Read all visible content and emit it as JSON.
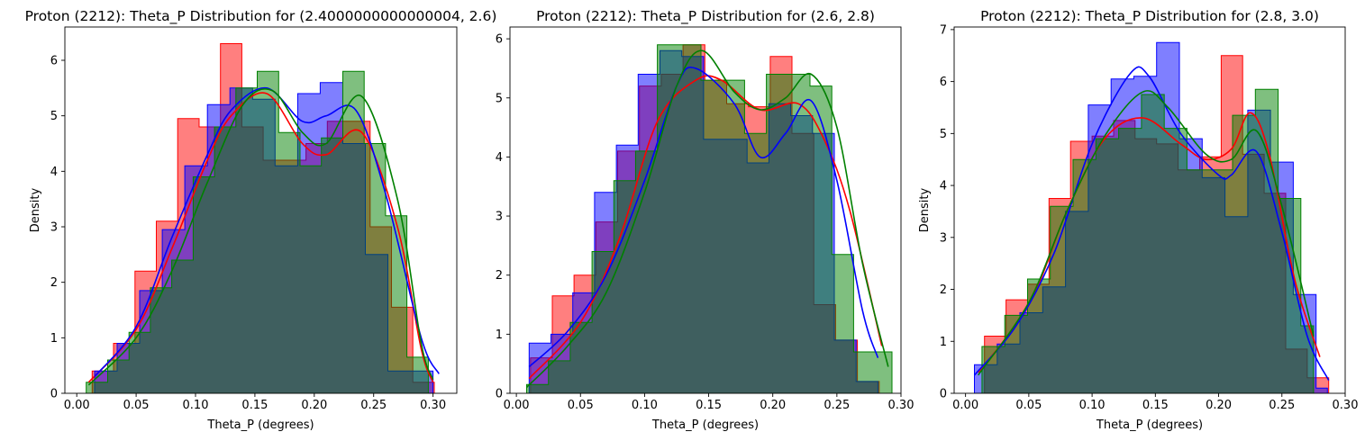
{
  "chart_data": [
    {
      "type": "area",
      "title": "Proton (2212): Theta_P Distribution for (2.4000000000000004, 2.6)",
      "xlabel": "Theta_P (degrees)",
      "ylabel": "Density",
      "xlim": [
        -0.01,
        0.32
      ],
      "ylim": [
        0,
        6.6
      ],
      "xticks": [
        0.0,
        0.05,
        0.1,
        0.15,
        0.2,
        0.25,
        0.3
      ],
      "xtick_labels": [
        "0.00",
        "0.05",
        "0.10",
        "0.15",
        "0.20",
        "0.25",
        "0.30"
      ],
      "yticks": [
        0,
        1,
        2,
        3,
        4,
        5,
        6
      ],
      "ytick_labels": [
        "0",
        "1",
        "2",
        "3",
        "4",
        "5",
        "6"
      ],
      "grid": false,
      "series": [
        {
          "color": "#ff0000",
          "bin_edges": [
            0.013,
            0.031,
            0.049,
            0.067,
            0.085,
            0.103,
            0.121,
            0.139,
            0.157,
            0.175,
            0.193,
            0.211,
            0.229,
            0.247,
            0.265,
            0.283,
            0.301
          ],
          "hist": [
            0.4,
            0.9,
            2.2,
            3.1,
            4.95,
            4.8,
            6.3,
            4.8,
            4.2,
            4.2,
            4.5,
            4.9,
            4.9,
            3.0,
            1.55,
            0.2
          ],
          "kde_x": [
            0.01,
            0.05,
            0.08,
            0.11,
            0.13,
            0.16,
            0.19,
            0.21,
            0.24,
            0.27,
            0.29,
            0.3
          ],
          "kde_y": [
            0.2,
            1.15,
            2.6,
            4.2,
            5.0,
            5.4,
            4.5,
            4.3,
            4.7,
            3.0,
            0.8,
            0.2
          ]
        },
        {
          "color": "#0000ff",
          "bin_edges": [
            0.015,
            0.034,
            0.053,
            0.072,
            0.091,
            0.11,
            0.129,
            0.148,
            0.167,
            0.186,
            0.205,
            0.224,
            0.243,
            0.262,
            0.281,
            0.3
          ],
          "hist": [
            0.4,
            0.9,
            1.85,
            2.95,
            4.1,
            5.2,
            5.5,
            5.3,
            4.1,
            5.4,
            5.6,
            4.5,
            2.5,
            0.4,
            0.4
          ],
          "kde_x": [
            0.015,
            0.05,
            0.08,
            0.11,
            0.13,
            0.16,
            0.19,
            0.21,
            0.235,
            0.26,
            0.29,
            0.305
          ],
          "kde_y": [
            0.3,
            1.2,
            2.8,
            4.3,
            5.1,
            5.5,
            4.9,
            5.0,
            5.1,
            3.6,
            1.0,
            0.35
          ]
        },
        {
          "color": "#008000",
          "bin_edges": [
            0.008,
            0.026,
            0.044,
            0.062,
            0.08,
            0.098,
            0.116,
            0.134,
            0.152,
            0.17,
            0.188,
            0.206,
            0.224,
            0.242,
            0.26,
            0.278,
            0.296
          ],
          "hist": [
            0.2,
            0.6,
            1.1,
            1.9,
            2.4,
            3.9,
            4.8,
            5.5,
            5.8,
            4.7,
            4.1,
            4.6,
            5.8,
            4.5,
            3.2,
            0.65
          ],
          "kde_x": [
            0.01,
            0.05,
            0.08,
            0.11,
            0.14,
            0.165,
            0.19,
            0.21,
            0.24,
            0.27,
            0.29,
            0.3
          ],
          "kde_y": [
            0.15,
            1.0,
            2.2,
            3.8,
            5.2,
            5.45,
            4.7,
            4.5,
            5.35,
            3.5,
            0.9,
            0.25
          ]
        }
      ]
    },
    {
      "type": "area",
      "title": "Proton (2212): Theta_P Distribution for (2.6, 2.8)",
      "xlabel": "Theta_P (degrees)",
      "ylabel": "",
      "xlim": [
        -0.005,
        0.3
      ],
      "ylim": [
        0,
        6.2
      ],
      "xticks": [
        0.0,
        0.05,
        0.1,
        0.15,
        0.2,
        0.25,
        0.3
      ],
      "xtick_labels": [
        "0.00",
        "0.05",
        "0.10",
        "0.15",
        "0.20",
        "0.25",
        "0.30"
      ],
      "yticks": [
        0,
        1,
        2,
        3,
        4,
        5,
        6
      ],
      "ytick_labels": [
        "0",
        "1",
        "2",
        "3",
        "4",
        "5",
        "6"
      ],
      "grid": false,
      "series": [
        {
          "color": "#ff0000",
          "bin_edges": [
            0.011,
            0.028,
            0.045,
            0.062,
            0.079,
            0.096,
            0.113,
            0.13,
            0.147,
            0.164,
            0.181,
            0.198,
            0.215,
            0.232,
            0.249,
            0.266,
            0.283
          ],
          "hist": [
            0.6,
            1.65,
            2.0,
            2.9,
            4.1,
            5.2,
            5.4,
            5.9,
            5.3,
            4.9,
            4.85,
            5.7,
            4.4,
            1.5,
            0.9,
            0.2
          ],
          "kde_x": [
            0.01,
            0.05,
            0.08,
            0.11,
            0.14,
            0.16,
            0.19,
            0.22,
            0.24,
            0.26,
            0.285
          ],
          "kde_y": [
            0.25,
            1.2,
            2.6,
            4.6,
            5.3,
            5.3,
            4.8,
            4.9,
            4.3,
            3.1,
            0.8
          ]
        },
        {
          "color": "#0000ff",
          "bin_edges": [
            0.01,
            0.027,
            0.044,
            0.061,
            0.078,
            0.095,
            0.112,
            0.129,
            0.146,
            0.163,
            0.18,
            0.197,
            0.214,
            0.231,
            0.248,
            0.265,
            0.282
          ],
          "hist": [
            0.85,
            1.0,
            1.7,
            3.4,
            4.2,
            5.4,
            5.8,
            5.7,
            4.3,
            4.3,
            3.9,
            4.9,
            4.7,
            4.4,
            0.9,
            0.2
          ],
          "kde_x": [
            0.01,
            0.04,
            0.07,
            0.1,
            0.125,
            0.14,
            0.17,
            0.19,
            0.21,
            0.23,
            0.25,
            0.27,
            0.282
          ],
          "kde_y": [
            0.45,
            1.05,
            2.0,
            3.6,
            5.2,
            5.5,
            4.9,
            4.0,
            4.4,
            4.95,
            3.6,
            1.4,
            0.6
          ]
        },
        {
          "color": "#008000",
          "bin_edges": [
            0.008,
            0.025,
            0.042,
            0.059,
            0.076,
            0.093,
            0.11,
            0.127,
            0.144,
            0.161,
            0.178,
            0.195,
            0.212,
            0.229,
            0.246,
            0.263,
            0.28,
            0.293
          ],
          "hist": [
            0.15,
            0.55,
            1.2,
            2.4,
            3.6,
            4.1,
            5.9,
            5.9,
            5.3,
            5.3,
            4.4,
            5.4,
            5.4,
            5.2,
            2.35,
            0.7,
            0.7
          ],
          "kde_x": [
            0.008,
            0.04,
            0.07,
            0.1,
            0.125,
            0.145,
            0.17,
            0.19,
            0.21,
            0.23,
            0.25,
            0.27,
            0.29
          ],
          "kde_y": [
            0.1,
            0.8,
            1.7,
            3.4,
            5.2,
            5.8,
            5.1,
            4.8,
            5.0,
            5.4,
            4.5,
            2.2,
            0.45
          ]
        }
      ]
    },
    {
      "type": "area",
      "title": "Proton (2212): Theta_P Distribution for (2.8, 3.0)",
      "xlabel": "Theta_P (degrees)",
      "ylabel": "Density",
      "xlim": [
        -0.009,
        0.3
      ],
      "ylim": [
        0,
        7.05
      ],
      "xticks": [
        0.0,
        0.05,
        0.1,
        0.15,
        0.2,
        0.25,
        0.3
      ],
      "xtick_labels": [
        "0.00",
        "0.05",
        "0.10",
        "0.15",
        "0.20",
        "0.25",
        "0.30"
      ],
      "yticks": [
        0,
        1,
        2,
        3,
        4,
        5,
        6,
        7
      ],
      "ytick_labels": [
        "0",
        "1",
        "2",
        "3",
        "4",
        "5",
        "6",
        "7"
      ],
      "grid": false,
      "series": [
        {
          "color": "#ff0000",
          "bin_edges": [
            0.015,
            0.032,
            0.049,
            0.066,
            0.083,
            0.1,
            0.117,
            0.134,
            0.151,
            0.168,
            0.185,
            0.202,
            0.219,
            0.236,
            0.253,
            0.27,
            0.287
          ],
          "hist": [
            1.1,
            1.8,
            2.1,
            3.75,
            4.85,
            4.95,
            5.25,
            4.9,
            4.8,
            4.3,
            4.55,
            6.5,
            4.6,
            3.85,
            0.85,
            0.3
          ],
          "kde_x": [
            0.01,
            0.05,
            0.08,
            0.11,
            0.14,
            0.17,
            0.19,
            0.21,
            0.225,
            0.24,
            0.26,
            0.28
          ],
          "kde_y": [
            0.4,
            1.7,
            3.5,
            4.9,
            5.3,
            4.8,
            4.5,
            4.7,
            5.4,
            4.6,
            2.2,
            0.7
          ]
        },
        {
          "color": "#0000ff",
          "bin_edges": [
            0.007,
            0.025,
            0.043,
            0.061,
            0.079,
            0.097,
            0.115,
            0.133,
            0.151,
            0.169,
            0.187,
            0.205,
            0.223,
            0.241,
            0.259,
            0.277,
            0.286
          ],
          "hist": [
            0.55,
            0.95,
            1.55,
            2.05,
            3.5,
            5.55,
            6.05,
            6.1,
            6.75,
            4.9,
            4.15,
            3.4,
            5.45,
            4.45,
            1.9,
            0.1
          ],
          "kde_x": [
            0.007,
            0.04,
            0.07,
            0.1,
            0.13,
            0.145,
            0.17,
            0.2,
            0.21,
            0.23,
            0.25,
            0.27,
            0.287
          ],
          "kde_y": [
            0.35,
            1.3,
            2.7,
            4.8,
            6.15,
            6.1,
            5.0,
            4.2,
            4.2,
            4.65,
            3.1,
            1.1,
            0.25
          ]
        },
        {
          "color": "#008000",
          "bin_edges": [
            0.013,
            0.031,
            0.049,
            0.067,
            0.085,
            0.103,
            0.121,
            0.139,
            0.157,
            0.175,
            0.193,
            0.211,
            0.229,
            0.247,
            0.265,
            0.275
          ],
          "hist": [
            0.9,
            1.5,
            2.2,
            3.6,
            4.5,
            4.9,
            5.1,
            5.75,
            5.1,
            4.3,
            4.3,
            5.35,
            5.85,
            3.75,
            1.3
          ],
          "kde_x": [
            0.01,
            0.05,
            0.08,
            0.11,
            0.14,
            0.16,
            0.19,
            0.21,
            0.23,
            0.25,
            0.275
          ],
          "kde_y": [
            0.35,
            1.75,
            3.5,
            4.95,
            5.8,
            5.5,
            4.6,
            4.5,
            5.05,
            3.6,
            1.1
          ]
        }
      ]
    }
  ]
}
